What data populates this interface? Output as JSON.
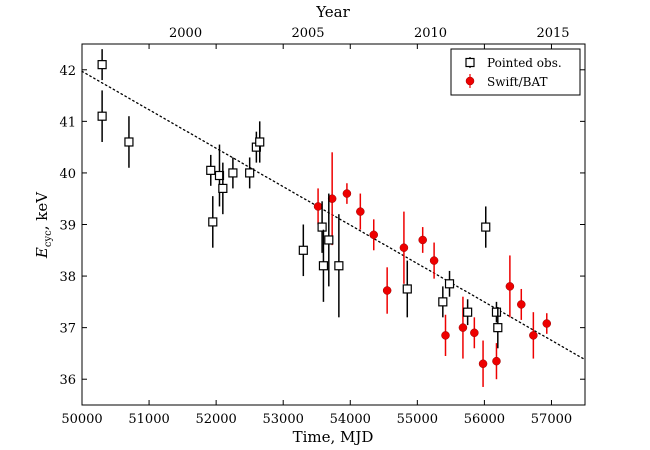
{
  "chart_data": {
    "type": "scatter",
    "xlabel": "Time, MJD",
    "ylabel_main": "E",
    "ylabel_sub": "cyc",
    "ylabel_rest": ", keV",
    "top_xlabel": "Year",
    "xlim": [
      50000,
      57500
    ],
    "ylim": [
      35.5,
      42.5
    ],
    "x_ticks": [
      50000,
      51000,
      52000,
      53000,
      54000,
      55000,
      56000,
      57000
    ],
    "y_ticks": [
      36,
      37,
      38,
      39,
      40,
      41,
      42
    ],
    "top_ticks": [
      {
        "label": "2000",
        "mjd": 51544
      },
      {
        "label": "2005",
        "mjd": 53370
      },
      {
        "label": "2010",
        "mjd": 55197
      },
      {
        "label": "2015",
        "mjd": 57023
      }
    ],
    "fit_line": {
      "style": "dotted",
      "x": [
        50000,
        57500
      ],
      "y": [
        41.97,
        36.38
      ]
    },
    "legend": {
      "position": "top-right",
      "entries": [
        "Pointed obs.",
        "Swift/BAT"
      ]
    },
    "series": [
      {
        "name": "Pointed obs.",
        "marker": "open-square",
        "color": "#000000",
        "points": [
          {
            "x": 50300,
            "y": 42.1,
            "err": 0.3
          },
          {
            "x": 50300,
            "y": 41.1,
            "err": 0.5
          },
          {
            "x": 50700,
            "y": 40.6,
            "err": 0.5
          },
          {
            "x": 51920,
            "y": 40.05,
            "err": 0.3
          },
          {
            "x": 51950,
            "y": 39.05,
            "err": 0.5
          },
          {
            "x": 52050,
            "y": 39.95,
            "err": 0.6
          },
          {
            "x": 52100,
            "y": 39.7,
            "err": 0.5
          },
          {
            "x": 52250,
            "y": 40.0,
            "err": 0.3
          },
          {
            "x": 52500,
            "y": 40.0,
            "err": 0.3
          },
          {
            "x": 52600,
            "y": 40.5,
            "err": 0.3
          },
          {
            "x": 52650,
            "y": 40.6,
            "err": 0.4
          },
          {
            "x": 53300,
            "y": 38.5,
            "err": 0.5
          },
          {
            "x": 53580,
            "y": 38.95,
            "err": 0.5
          },
          {
            "x": 53600,
            "y": 38.2,
            "err": 0.7
          },
          {
            "x": 53680,
            "y": 38.7,
            "err": 0.9
          },
          {
            "x": 53830,
            "y": 38.2,
            "err": 1.0
          },
          {
            "x": 54850,
            "y": 37.75,
            "err": 0.55
          },
          {
            "x": 55380,
            "y": 37.5,
            "err": 0.3
          },
          {
            "x": 55480,
            "y": 37.85,
            "err": 0.25
          },
          {
            "x": 55750,
            "y": 37.3,
            "err": 0.25
          },
          {
            "x": 56020,
            "y": 38.95,
            "err": 0.4
          },
          {
            "x": 56180,
            "y": 37.3,
            "err": 0.2
          },
          {
            "x": 56200,
            "y": 37.0,
            "err": 0.4
          }
        ]
      },
      {
        "name": "Swift/BAT",
        "marker": "filled-circle",
        "color": "#ee0000",
        "points": [
          {
            "x": 53520,
            "y": 39.35,
            "err": 0.35
          },
          {
            "x": 53730,
            "y": 39.5,
            "err": 0.9
          },
          {
            "x": 53950,
            "y": 39.6,
            "err": 0.2
          },
          {
            "x": 54150,
            "y": 39.25,
            "err": 0.35
          },
          {
            "x": 54350,
            "y": 38.8,
            "err": 0.3
          },
          {
            "x": 54550,
            "y": 37.72,
            "err": 0.45
          },
          {
            "x": 54800,
            "y": 38.55,
            "err": 0.7
          },
          {
            "x": 55080,
            "y": 38.7,
            "err": 0.25
          },
          {
            "x": 55250,
            "y": 38.3,
            "err": 0.35
          },
          {
            "x": 55420,
            "y": 36.85,
            "err": 0.4
          },
          {
            "x": 55680,
            "y": 37.0,
            "err": 0.6
          },
          {
            "x": 55850,
            "y": 36.9,
            "err": 0.3
          },
          {
            "x": 55980,
            "y": 36.3,
            "err": 0.45
          },
          {
            "x": 56180,
            "y": 36.35,
            "err": 0.35
          },
          {
            "x": 56380,
            "y": 37.8,
            "err": 0.6
          },
          {
            "x": 56550,
            "y": 37.45,
            "err": 0.3
          },
          {
            "x": 56730,
            "y": 36.85,
            "err": 0.45
          },
          {
            "x": 56930,
            "y": 37.08,
            "err": 0.2
          }
        ]
      }
    ]
  }
}
